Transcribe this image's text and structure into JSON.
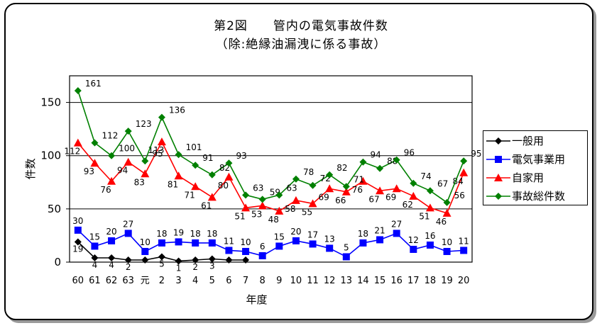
{
  "title": "第2図　　管内の電気事故件数",
  "subtitle": "（除:絶縁油漏洩に係る事故）",
  "chart_data": {
    "type": "line",
    "title": "第2図　　管内の電気事故件数",
    "subtitle": "（除:絶縁油漏洩に係る事故）",
    "xlabel": "年度",
    "ylabel": "件数",
    "ylim": [
      0,
      175
    ],
    "yticks": [
      0,
      50,
      100,
      150
    ],
    "grid": "horizontal at 50, 100, 150",
    "legend_position": "right",
    "categories": [
      "60",
      "61",
      "62",
      "63",
      "元",
      "2",
      "3",
      "4",
      "5",
      "6",
      "7",
      "8",
      "9",
      "10",
      "11",
      "12",
      "13",
      "14",
      "15",
      "16",
      "17",
      "18",
      "19",
      "20"
    ],
    "series": [
      {
        "name": "一般用",
        "color": "#000000",
        "marker": "diamond",
        "values": [
          19,
          4,
          4,
          2,
          2,
          5,
          1,
          2,
          3,
          2,
          2,
          null,
          null,
          null,
          null,
          null,
          null,
          null,
          null,
          null,
          null,
          null,
          null,
          null
        ],
        "labels": [
          "19",
          "4",
          "4",
          "2",
          "",
          "5",
          "1",
          "2",
          "3",
          "",
          "",
          "",
          "",
          "",
          "",
          "",
          "",
          "",
          "",
          "",
          "",
          "",
          "",
          ""
        ]
      },
      {
        "name": "電気事業用",
        "color": "#0000ff",
        "marker": "square",
        "values": [
          30,
          15,
          20,
          27,
          10,
          18,
          19,
          18,
          18,
          11,
          10,
          6,
          15,
          20,
          17,
          13,
          5,
          18,
          21,
          27,
          12,
          16,
          10,
          11
        ],
        "labels": [
          "30",
          "15",
          "20",
          "27",
          "10",
          "18",
          "19",
          "18",
          "18",
          "11",
          "10",
          "6",
          "15",
          "20",
          "17",
          "13",
          "5",
          "18",
          "21",
          "27",
          "12",
          "16",
          "10",
          "11"
        ]
      },
      {
        "name": "自家用",
        "color": "#ff0000",
        "marker": "triangle",
        "values": [
          112,
          93,
          76,
          94,
          83,
          113,
          81,
          71,
          61,
          80,
          51,
          53,
          48,
          58,
          55,
          69,
          66,
          76,
          67,
          69,
          62,
          51,
          46,
          84
        ],
        "labels": [
          "112",
          "93",
          "76",
          "94",
          "83",
          "113",
          "81",
          "71",
          "61",
          "80",
          "51",
          "53",
          "48",
          "58",
          "55",
          "69",
          "66",
          "76",
          "67",
          "69",
          "62",
          "51",
          "46",
          "84"
        ]
      },
      {
        "name": "事故総件数",
        "color": "#008000",
        "marker": "diamond",
        "values": [
          161,
          112,
          100,
          123,
          95,
          136,
          101,
          91,
          82,
          93,
          63,
          59,
          63,
          78,
          72,
          82,
          71,
          94,
          88,
          96,
          74,
          67,
          56,
          95
        ],
        "labels": [
          "161",
          "112",
          "100",
          "123",
          "95",
          "136",
          "101",
          "91",
          "82",
          "93",
          "63",
          "59",
          "63",
          "78",
          "72",
          "82",
          "71",
          "94",
          "88",
          "96",
          "74",
          "67",
          "56",
          "95"
        ]
      }
    ]
  }
}
